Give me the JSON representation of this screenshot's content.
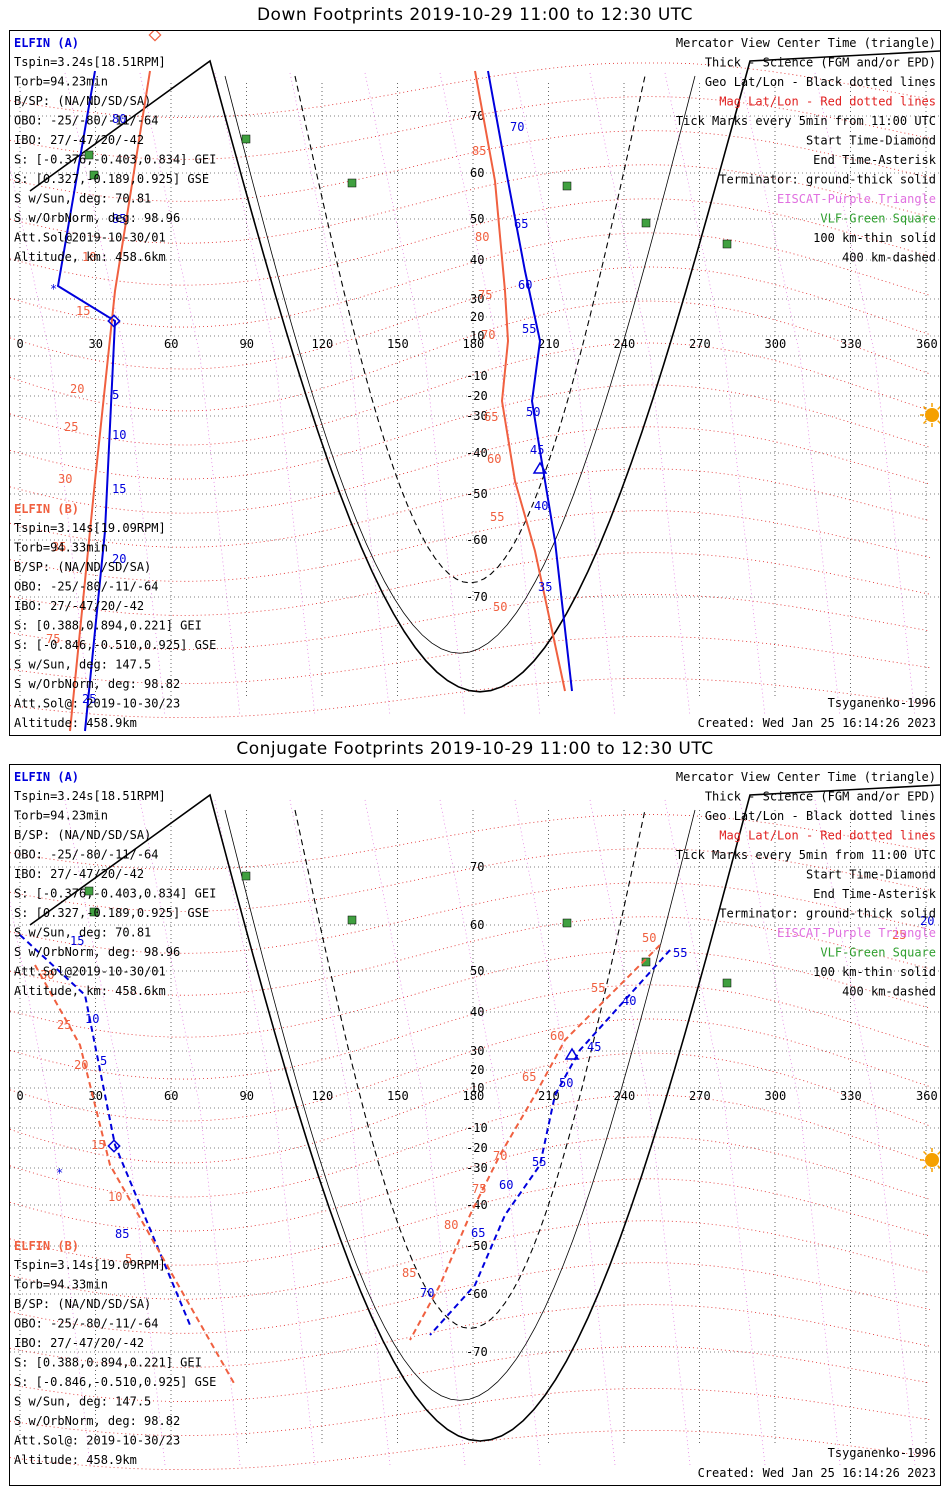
{
  "panels": [
    {
      "title": "Down Footprints 2019-10-29 11:00 to 12:30 UTC",
      "elfin_a": {
        "name": "ELFIN (A)",
        "lines": [
          "Tspin=3.24s[18.51RPM]",
          "Torb=94.23min",
          "B/SP: (NA/ND/SD/SA)",
          "OBO: -25/-80/-11/-64",
          "IBO: 27/-47/20/-42",
          "S: [-0.376,-0.403,0.834] GEI",
          "S: [0.327,-0.189,0.925] GSE",
          "S w/Sun, deg: 70.81",
          "S w/OrbNorm, deg: 98.96",
          "Att.Sol@2019-10-30/01",
          "Altitude, km: 458.6km"
        ]
      },
      "elfin_b": {
        "name": "ELFIN (B)",
        "lines": [
          "Tspin=3.14s[19.09RPM]",
          "Torb=94.33min",
          "B/SP: (NA/ND/SD/SA)",
          "OBO: -25/-80/-11/-64",
          "IBO: 27/-47/20/-42",
          "S: [0.388,0.894,0.221] GEI",
          "S: [-0.846,-0.510,0.925] GSE",
          "S w/Sun, deg: 147.5",
          "S w/OrbNorm, deg: 98.82",
          "Att.Sol@: 2019-10-30/23",
          "Altitude: 458.9km"
        ]
      },
      "legend": [
        {
          "text": "Mercator View Center Time (triangle)",
          "color": "#000000"
        },
        {
          "text": "Thick - Science (FGM and/or EPD)",
          "color": "#000000"
        },
        {
          "text": "Geo Lat/Lon - Black dotted lines",
          "color": "#000000"
        },
        {
          "text": "Mag Lat/Lon - Red dotted lines",
          "color": "#e02020"
        },
        {
          "text": "Tick Marks every 5min from 11:00 UTC",
          "color": "#000000"
        },
        {
          "text": "Start Time-Diamond",
          "color": "#000000"
        },
        {
          "text": "End Time-Asterisk",
          "color": "#000000"
        },
        {
          "text": "Terminator: ground-thick solid",
          "color": "#000000"
        },
        {
          "text": "EISCAT-Purple Triangle",
          "color": "#e070e0"
        },
        {
          "text": "VLF-Green Square",
          "color": "#30a030"
        },
        {
          "text": "100 km-thin solid",
          "color": "#000000"
        },
        {
          "text": "400 km-dashed",
          "color": "#000000"
        }
      ],
      "footer_left": "",
      "footer_right_1": "Tsyganenko-1996",
      "footer_right_2": "Created: Wed Jan 25 16:14:26 2023",
      "lon_labels": [
        "0",
        "30",
        "60",
        "90",
        "120",
        "150",
        "180",
        "210",
        "240",
        "270",
        "300",
        "330",
        "360"
      ],
      "lat_labels": [
        "70",
        "60",
        "50",
        "40",
        "30",
        "20",
        "10",
        "-10",
        "-20",
        "-30",
        "-40",
        "-50",
        "-60",
        "-70"
      ],
      "track_a_labels": [
        "70",
        "65",
        "60",
        "55",
        "50",
        "45",
        "40",
        "35"
      ],
      "track_b_labels": [
        "85",
        "80",
        "75",
        "70",
        "65",
        "60",
        "55",
        "50"
      ],
      "left_track_a_labels": [
        "80",
        "85",
        "5",
        "10",
        "15",
        "20",
        "25"
      ],
      "left_track_b_labels": [
        "10",
        "15",
        "20",
        "25",
        "30",
        "35",
        "75"
      ]
    },
    {
      "title": "Conjugate Footprints 2019-10-29 11:00 to 12:30 UTC",
      "elfin_a": {
        "name": "ELFIN (A)",
        "lines": [
          "Tspin=3.24s[18.51RPM]",
          "Torb=94.23min",
          "B/SP: (NA/ND/SD/SA)",
          "OBO: -25/-80/-11/-64",
          "IBO: 27/-47/20/-42",
          "S: [-0.376,-0.403,0.834] GEI",
          "S: [0.327,-0.189,0.925] GSE",
          "S w/Sun, deg: 70.81",
          "S w/OrbNorm, deg: 98.96",
          "Att.Sol@2019-10-30/01",
          "Altitude, km: 458.6km"
        ]
      },
      "elfin_b": {
        "name": "ELFIN (B)",
        "lines": [
          "Tspin=3.14s[19.09RPM]",
          "Torb=94.33min",
          "B/SP: (NA/ND/SD/SA)",
          "OBO: -25/-80/-11/-64",
          "IBO: 27/-47/20/-42",
          "S: [0.388,0.894,0.221] GEI",
          "S: [-0.846,-0.510,0.925] GSE",
          "S w/Sun, deg: 147.5",
          "S w/OrbNorm, deg: 98.82",
          "Att.Sol@: 2019-10-30/23",
          "Altitude: 458.9km"
        ]
      },
      "legend": [
        {
          "text": "Mercator View Center Time (triangle)",
          "color": "#000000"
        },
        {
          "text": "Thick - Science (FGM and/or EPD)",
          "color": "#000000"
        },
        {
          "text": "Geo Lat/Lon - Black dotted lines",
          "color": "#000000"
        },
        {
          "text": "Mag Lat/Lon - Red dotted lines",
          "color": "#e02020"
        },
        {
          "text": "Tick Marks every 5min from 11:00 UTC",
          "color": "#000000"
        },
        {
          "text": "Start Time-Diamond",
          "color": "#000000"
        },
        {
          "text": "End Time-Asterisk",
          "color": "#000000"
        },
        {
          "text": "Terminator: ground-thick solid",
          "color": "#000000"
        },
        {
          "text": "EISCAT-Purple Triangle",
          "color": "#e070e0"
        },
        {
          "text": "VLF-Green Square",
          "color": "#30a030"
        },
        {
          "text": "100 km-thin solid",
          "color": "#000000"
        },
        {
          "text": "400 km-dashed",
          "color": "#000000"
        }
      ],
      "footer_right_1": "Tsyganenko-1996",
      "footer_right_2": "Created: Wed Jan 25 16:14:26 2023",
      "lon_labels": [
        "0",
        "30",
        "60",
        "90",
        "120",
        "150",
        "180",
        "210",
        "240",
        "270",
        "300",
        "330",
        "360"
      ],
      "lat_labels": [
        "70",
        "60",
        "50",
        "40",
        "30",
        "20",
        "10",
        "-10",
        "-20",
        "-30",
        "-40",
        "-50",
        "-60",
        "-70"
      ],
      "track_a_labels": [
        "55",
        "40",
        "45",
        "50",
        "55",
        "60",
        "65",
        "70"
      ],
      "track_b_labels": [
        "50",
        "55",
        "60",
        "65",
        "70",
        "75",
        "80",
        "85"
      ],
      "left_track_a_labels": [
        "15",
        "10",
        "5",
        "85"
      ],
      "left_track_b_labels": [
        "30",
        "25",
        "20",
        "15",
        "10",
        "5"
      ],
      "right_edge_labels": [
        "20",
        "25"
      ]
    }
  ],
  "colors": {
    "track_a": "#0000dd",
    "track_b": "#f06040",
    "mag_grid": "#e02020",
    "geo_grid": "#000000",
    "eiscat": "#e070e0",
    "vlf": "#40a040",
    "sun": "#f5a000"
  }
}
